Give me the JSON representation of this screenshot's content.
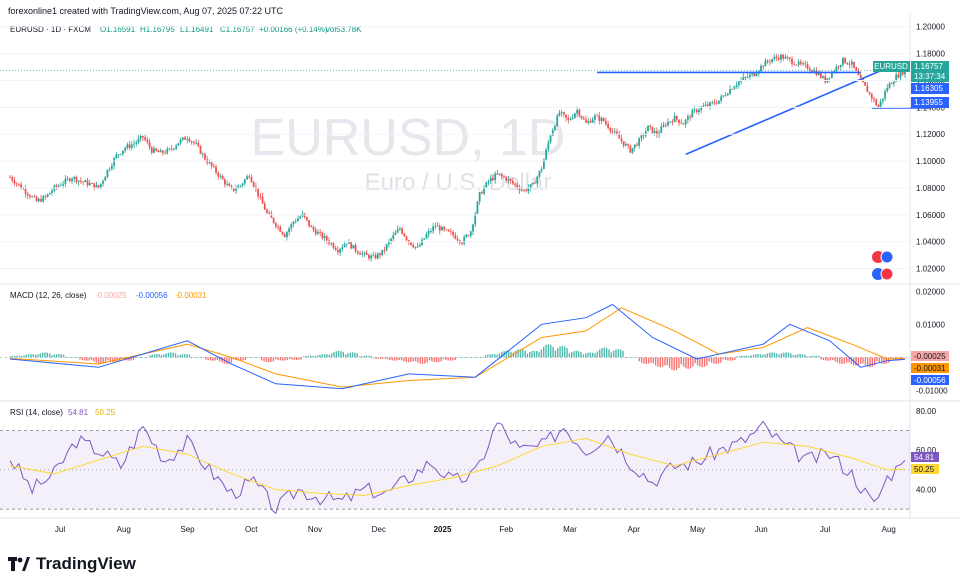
{
  "header": "forexonline1 created with TradingView.com, Aug 07, 2025 07:22 UTC",
  "brand": "TradingView",
  "main": {
    "symbol_line": "EURUSD · 1D · FXCM",
    "open": "O1.16591",
    "high": "H1.16795",
    "low": "L1.16491",
    "close": "C1.16757",
    "change": "+0.00166 (+0.14%)",
    "volume": "Vol53.78K",
    "watermark_title": "EURUSD, 1D",
    "watermark_sub": "Euro / U.S. Dollar",
    "price_labels": {
      "symbol": "EURUSD",
      "last": "1.16757",
      "countdown": "13:37:34",
      "level_upper": "1.16305",
      "level_lower": "1.13955"
    }
  },
  "macd": {
    "title": "MACD (12, 26, close)",
    "v1": "-0.00025",
    "v2": "-0.00056",
    "v3": "-0.00031",
    "labels": [
      "-0.00025",
      "-0.00031",
      "-0.00056"
    ]
  },
  "rsi": {
    "title": "RSI (14, close)",
    "v1": "54.81",
    "v2": "50.25",
    "labels": [
      "54.81",
      "50.25"
    ]
  },
  "colors": {
    "up": "#26a69a",
    "down": "#ef5350",
    "trend": "#2962ff",
    "macd_line": "#2962ff",
    "signal_line": "#ff9800",
    "rsi_line": "#7e57c2",
    "rsi_ma": "#fdd835"
  },
  "chart_data": [
    {
      "type": "candlestick",
      "title": "EURUSD, 1D",
      "ylim": [
        1.01,
        1.205
      ],
      "yticks": [
        "1.20000",
        "1.18000",
        "1.16000",
        "1.14000",
        "1.12000",
        "1.10000",
        "1.08000",
        "1.06000",
        "1.04000",
        "1.02000"
      ],
      "x_months": [
        "Jul",
        "Aug",
        "Sep",
        "Oct",
        "Nov",
        "Dec",
        "2025",
        "Feb",
        "Mar",
        "Apr",
        "May",
        "Jun",
        "Jul",
        "Aug"
      ],
      "close_path": [
        [
          0,
          1.088
        ],
        [
          4,
          1.082
        ],
        [
          8,
          1.076
        ],
        [
          12,
          1.07
        ],
        [
          16,
          1.073
        ],
        [
          20,
          1.08
        ],
        [
          24,
          1.084
        ],
        [
          28,
          1.088
        ],
        [
          32,
          1.085
        ],
        [
          36,
          1.083
        ],
        [
          40,
          1.08
        ],
        [
          44,
          1.093
        ],
        [
          48,
          1.104
        ],
        [
          52,
          1.11
        ],
        [
          56,
          1.113
        ],
        [
          60,
          1.118
        ],
        [
          64,
          1.108
        ],
        [
          68,
          1.106
        ],
        [
          72,
          1.108
        ],
        [
          76,
          1.114
        ],
        [
          80,
          1.118
        ],
        [
          84,
          1.112
        ],
        [
          88,
          1.102
        ],
        [
          92,
          1.094
        ],
        [
          96,
          1.086
        ],
        [
          100,
          1.078
        ],
        [
          104,
          1.082
        ],
        [
          108,
          1.09
        ],
        [
          112,
          1.075
        ],
        [
          116,
          1.061
        ],
        [
          120,
          1.053
        ],
        [
          124,
          1.045
        ],
        [
          128,
          1.055
        ],
        [
          132,
          1.06
        ],
        [
          136,
          1.05
        ],
        [
          140,
          1.045
        ],
        [
          144,
          1.04
        ],
        [
          148,
          1.034
        ],
        [
          152,
          1.04
        ],
        [
          156,
          1.034
        ],
        [
          160,
          1.03
        ],
        [
          164,
          1.028
        ],
        [
          168,
          1.032
        ],
        [
          172,
          1.042
        ],
        [
          176,
          1.05
        ],
        [
          180,
          1.04
        ],
        [
          184,
          1.035
        ],
        [
          188,
          1.045
        ],
        [
          192,
          1.052
        ],
        [
          196,
          1.048
        ],
        [
          200,
          1.045
        ],
        [
          204,
          1.04
        ],
        [
          208,
          1.048
        ],
        [
          212,
          1.075
        ],
        [
          216,
          1.085
        ],
        [
          220,
          1.09
        ],
        [
          224,
          1.087
        ],
        [
          228,
          1.082
        ],
        [
          232,
          1.078
        ],
        [
          236,
          1.082
        ],
        [
          240,
          1.095
        ],
        [
          244,
          1.12
        ],
        [
          248,
          1.136
        ],
        [
          252,
          1.13
        ],
        [
          256,
          1.138
        ],
        [
          260,
          1.128
        ],
        [
          264,
          1.133
        ],
        [
          268,
          1.13
        ],
        [
          272,
          1.122
        ],
        [
          276,
          1.115
        ],
        [
          280,
          1.108
        ],
        [
          284,
          1.115
        ],
        [
          288,
          1.125
        ],
        [
          292,
          1.12
        ],
        [
          296,
          1.128
        ],
        [
          300,
          1.132
        ],
        [
          304,
          1.128
        ],
        [
          308,
          1.136
        ],
        [
          312,
          1.14
        ],
        [
          316,
          1.142
        ],
        [
          320,
          1.145
        ],
        [
          324,
          1.152
        ],
        [
          328,
          1.158
        ],
        [
          332,
          1.162
        ],
        [
          336,
          1.165
        ],
        [
          340,
          1.172
        ],
        [
          344,
          1.176
        ],
        [
          348,
          1.178
        ],
        [
          352,
          1.175
        ],
        [
          356,
          1.172
        ],
        [
          360,
          1.17
        ],
        [
          364,
          1.166
        ],
        [
          368,
          1.16
        ],
        [
          372,
          1.168
        ],
        [
          376,
          1.175
        ],
        [
          380,
          1.172
        ],
        [
          384,
          1.16
        ],
        [
          388,
          1.15
        ],
        [
          392,
          1.14
        ],
        [
          396,
          1.155
        ],
        [
          400,
          1.163
        ],
        [
          404,
          1.1676
        ]
      ],
      "trend_lines": [
        {
          "name": "support-trendline",
          "from": [
            305,
            1.105
          ],
          "to": [
            394,
            1.168
          ]
        },
        {
          "name": "horizontal-resistance",
          "from": [
            265,
            1.166
          ],
          "to": [
            384,
            1.166
          ]
        },
        {
          "name": "level-1.13955",
          "from": [
            389,
            1.1395
          ],
          "to": [
            414,
            1.1395
          ]
        }
      ]
    },
    {
      "type": "macd",
      "title": "MACD (12, 26, close)",
      "yticks": [
        "0.02000",
        "0.01000",
        "-0.01000"
      ],
      "ylim": [
        -0.012,
        0.021
      ],
      "macd_path": [
        [
          0,
          -0.0005
        ],
        [
          40,
          -0.003
        ],
        [
          80,
          0.005
        ],
        [
          100,
          -0.002
        ],
        [
          120,
          -0.008
        ],
        [
          150,
          -0.0095
        ],
        [
          180,
          -0.005
        ],
        [
          210,
          -0.006
        ],
        [
          240,
          0.01
        ],
        [
          260,
          0.012
        ],
        [
          272,
          0.016
        ],
        [
          290,
          0.006
        ],
        [
          310,
          -0.0005
        ],
        [
          340,
          0.004
        ],
        [
          352,
          0.01
        ],
        [
          370,
          0.005
        ],
        [
          384,
          -0.003
        ],
        [
          396,
          -0.001
        ],
        [
          404,
          -0.0006
        ]
      ],
      "signal_path": [
        [
          0,
          -0.0003
        ],
        [
          40,
          -0.002
        ],
        [
          80,
          0.004
        ],
        [
          100,
          0.0
        ],
        [
          120,
          -0.005
        ],
        [
          150,
          -0.009
        ],
        [
          180,
          -0.007
        ],
        [
          210,
          -0.006
        ],
        [
          240,
          0.006
        ],
        [
          260,
          0.008
        ],
        [
          276,
          0.015
        ],
        [
          300,
          0.008
        ],
        [
          320,
          0.001
        ],
        [
          340,
          0.003
        ],
        [
          360,
          0.009
        ],
        [
          380,
          0.004
        ],
        [
          396,
          -0.0005
        ],
        [
          404,
          -0.0003
        ]
      ],
      "histogram": [
        0.0005,
        0.001,
        0.0015,
        0.001,
        0.0,
        -0.001,
        -0.002,
        -0.0015,
        -0.001,
        0.0,
        0.001,
        0.0015,
        0.001,
        0.0,
        -0.001,
        -0.002,
        -0.001,
        0.0,
        -0.0015,
        -0.001,
        -0.0008,
        0.0005,
        0.001,
        0.002,
        0.0015,
        0.0005,
        -0.0005,
        -0.001,
        -0.0015,
        -0.002,
        -0.0015,
        -0.001,
        0.0,
        0.0,
        0.001,
        0.002,
        0.0025,
        0.002,
        0.004,
        0.0035,
        0.002,
        0.0015,
        0.003,
        0.0025,
        0.0,
        -0.002,
        -0.003,
        -0.004,
        -0.0035,
        -0.003,
        -0.002,
        -0.001,
        0.0005,
        0.001,
        0.0015,
        0.0015,
        0.001,
        0.0005,
        -0.001,
        -0.002,
        -0.0025,
        -0.003,
        -0.002,
        -0.001
      ]
    },
    {
      "type": "rsi",
      "title": "RSI (14, close)",
      "yticks": [
        "80.00",
        "60.00",
        "40.00"
      ],
      "ylim": [
        27,
        83
      ],
      "bands": [
        30,
        70
      ],
      "rsi_path": [
        [
          0,
          56
        ],
        [
          10,
          40
        ],
        [
          20,
          48
        ],
        [
          30,
          65
        ],
        [
          40,
          60
        ],
        [
          50,
          52
        ],
        [
          60,
          72
        ],
        [
          70,
          55
        ],
        [
          80,
          64
        ],
        [
          90,
          50
        ],
        [
          100,
          38
        ],
        [
          110,
          44
        ],
        [
          120,
          30
        ],
        [
          130,
          40
        ],
        [
          140,
          36
        ],
        [
          150,
          34
        ],
        [
          160,
          40
        ],
        [
          170,
          38
        ],
        [
          180,
          46
        ],
        [
          190,
          54
        ],
        [
          200,
          44
        ],
        [
          210,
          48
        ],
        [
          220,
          74
        ],
        [
          230,
          60
        ],
        [
          240,
          62
        ],
        [
          250,
          72
        ],
        [
          260,
          60
        ],
        [
          270,
          68
        ],
        [
          280,
          54
        ],
        [
          290,
          44
        ],
        [
          300,
          52
        ],
        [
          310,
          54
        ],
        [
          320,
          60
        ],
        [
          330,
          64
        ],
        [
          340,
          72
        ],
        [
          350,
          62
        ],
        [
          360,
          55
        ],
        [
          370,
          58
        ],
        [
          380,
          48
        ],
        [
          390,
          32
        ],
        [
          396,
          46
        ],
        [
          404,
          54.8
        ]
      ],
      "ma_path": [
        [
          0,
          52
        ],
        [
          20,
          48
        ],
        [
          40,
          55
        ],
        [
          60,
          62
        ],
        [
          80,
          58
        ],
        [
          100,
          48
        ],
        [
          120,
          40
        ],
        [
          140,
          38
        ],
        [
          160,
          37
        ],
        [
          180,
          42
        ],
        [
          200,
          46
        ],
        [
          220,
          52
        ],
        [
          240,
          62
        ],
        [
          260,
          66
        ],
        [
          280,
          58
        ],
        [
          300,
          52
        ],
        [
          320,
          58
        ],
        [
          340,
          64
        ],
        [
          360,
          62
        ],
        [
          380,
          56
        ],
        [
          396,
          50
        ],
        [
          404,
          50.25
        ]
      ]
    }
  ]
}
